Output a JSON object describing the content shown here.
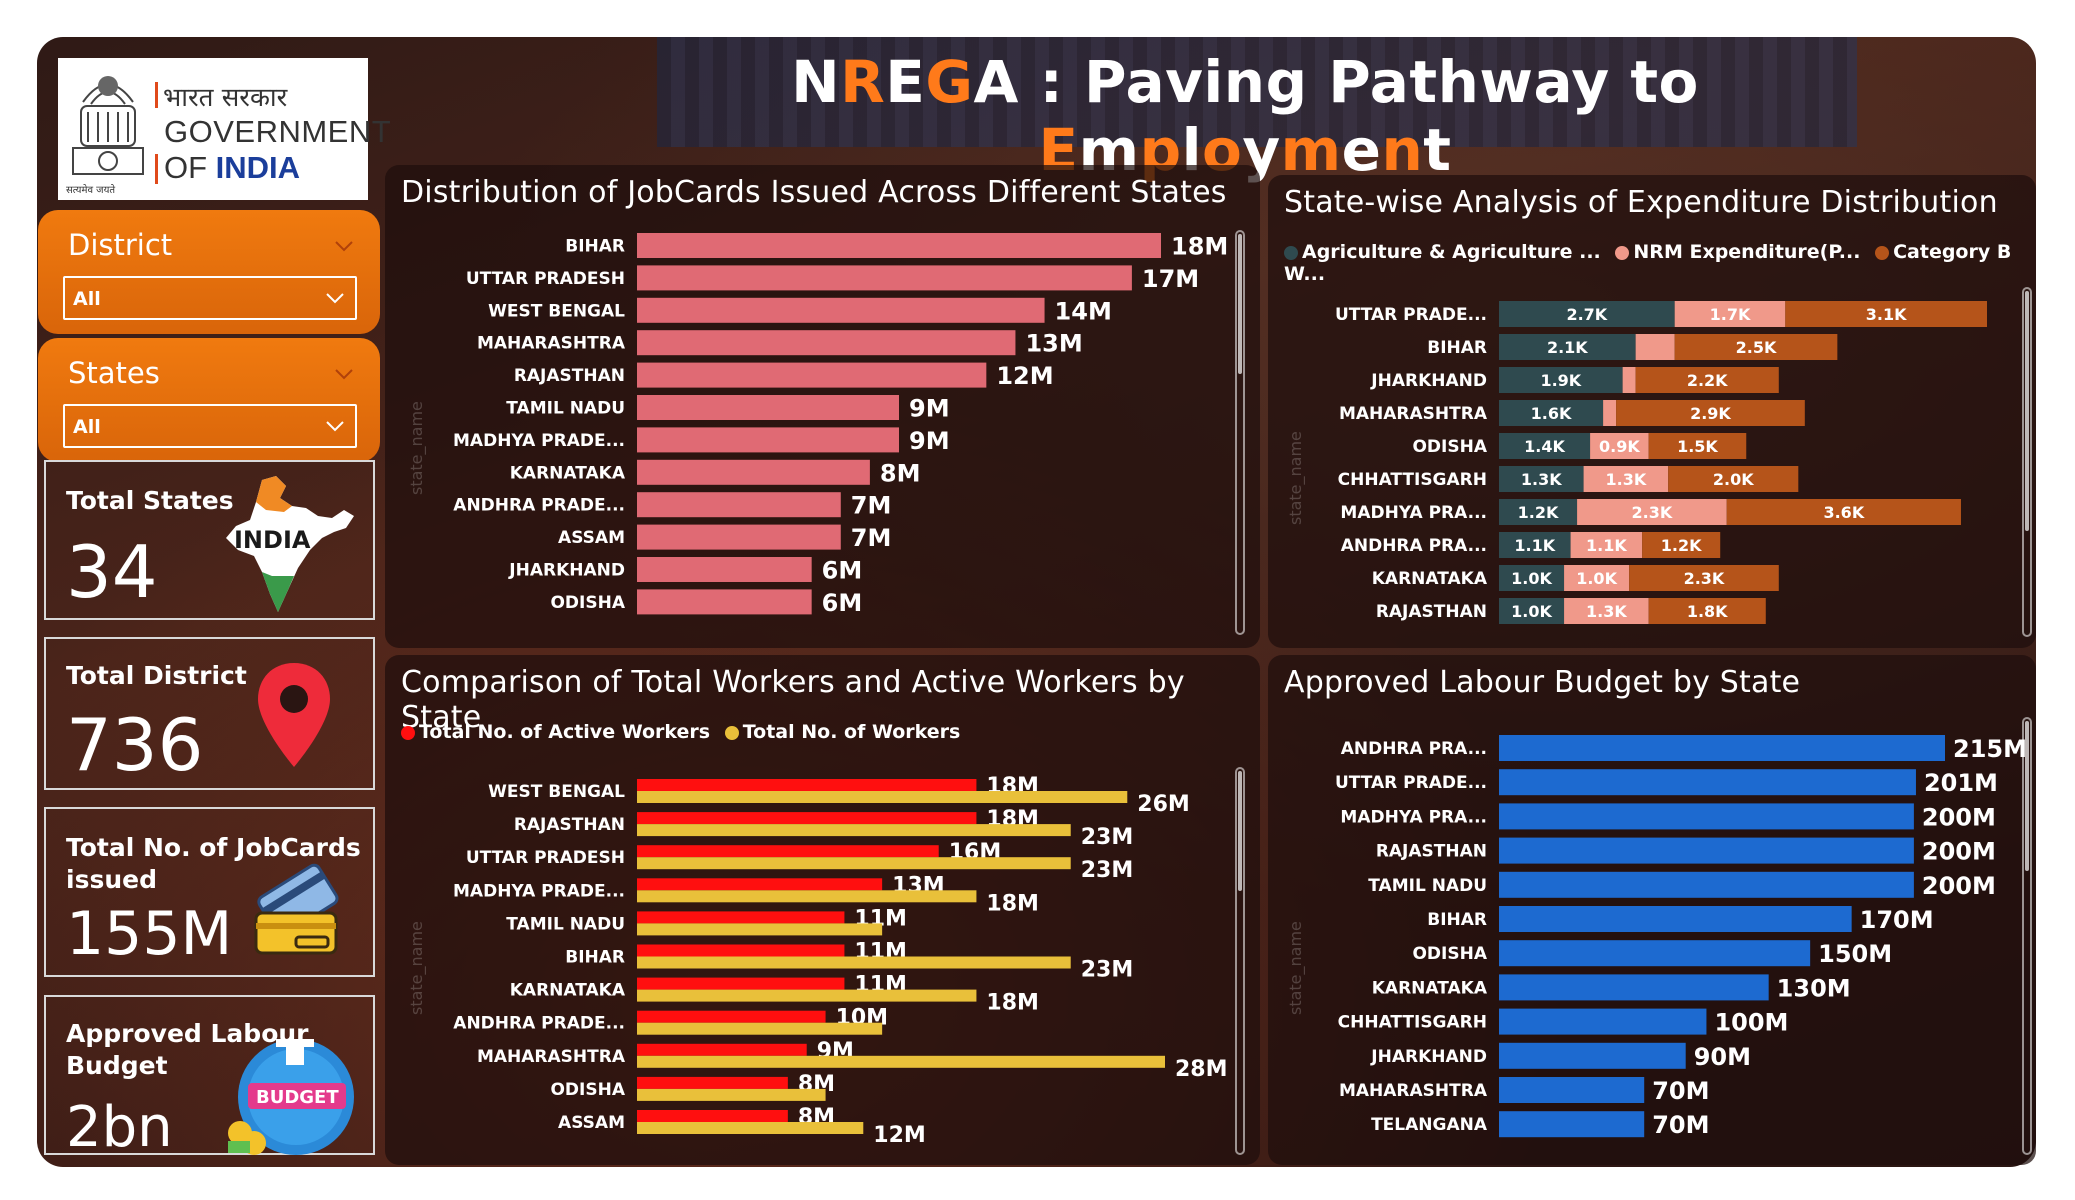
{
  "header": {
    "title_parts": [
      {
        "text": "N",
        "accent": false
      },
      {
        "text": "R",
        "accent": true
      },
      {
        "text": "E",
        "accent": false
      },
      {
        "text": "G",
        "accent": true
      },
      {
        "text": "A : Paving Pathway to ",
        "accent": false
      },
      {
        "text": "E",
        "accent": true
      },
      {
        "text": "m",
        "accent": false
      },
      {
        "text": "p",
        "accent": true
      },
      {
        "text": "l",
        "accent": false
      },
      {
        "text": "o",
        "accent": true
      },
      {
        "text": "y",
        "accent": false
      },
      {
        "text": "m",
        "accent": true
      },
      {
        "text": "e",
        "accent": false
      },
      {
        "text": "n",
        "accent": true
      },
      {
        "text": "t",
        "accent": false
      }
    ]
  },
  "logo": {
    "hindi": "भारत सरकार",
    "line1": "GOVERNMENT",
    "line2_prefix": "OF ",
    "line2_accent": "INDIA",
    "motto": "सत्यमेव जयते"
  },
  "filters": {
    "district": {
      "label": "District",
      "value": "All"
    },
    "states": {
      "label": "States",
      "value": "All"
    }
  },
  "kpis": {
    "total_states": {
      "label": "Total States",
      "value": "34",
      "icon": "india-map-icon",
      "icon_text": "INDIA"
    },
    "total_district": {
      "label": "Total District",
      "value": "736",
      "icon": "location-pin-icon"
    },
    "jobcards": {
      "label_line1": "Total No. of JobCards",
      "label_line2": "issued",
      "value": "155M",
      "icon": "credit-card-icon"
    },
    "labour_budget": {
      "label_line1": "Approved Labour",
      "label_line2": "Budget",
      "value": "2bn",
      "icon": "budget-icon",
      "icon_text": "BUDGET"
    }
  },
  "colors": {
    "accent": "#ff7a1a",
    "jobcards_bar": "#e06a74",
    "active_workers": "#ff0f0f",
    "total_workers": "#e9c03a",
    "agriculture": "#2f4a4f",
    "nrm": "#f0998a",
    "category_b": "#b5541a",
    "budget_bar": "#1d6ad0"
  },
  "chart_data": [
    {
      "id": "jobcards",
      "type": "bar",
      "orientation": "horizontal",
      "title": "Distribution of JobCards Issued Across Different States",
      "ylabel": "state_name",
      "categories": [
        "BIHAR",
        "UTTAR PRADESH",
        "WEST BENGAL",
        "MAHARASHTRA",
        "RAJASTHAN",
        "TAMIL NADU",
        "MADHYA PRADE...",
        "KARNATAKA",
        "ANDHRA PRADE...",
        "ASSAM",
        "JHARKHAND",
        "ODISHA"
      ],
      "values": [
        18,
        17,
        14,
        13,
        12,
        9,
        9,
        8,
        7,
        7,
        6,
        6
      ],
      "value_labels": [
        "18M",
        "17M",
        "14M",
        "13M",
        "12M",
        "9M",
        "9M",
        "8M",
        "7M",
        "7M",
        "6M",
        "6M"
      ],
      "unit": "M",
      "xlim": [
        0,
        18
      ]
    },
    {
      "id": "expenditure",
      "type": "bar",
      "orientation": "horizontal",
      "stacked": true,
      "title": "State-wise Analysis of Expenditure Distribution",
      "ylabel": "state_name",
      "categories": [
        "UTTAR PRADE...",
        "BIHAR",
        "JHARKHAND",
        "MAHARASHTRA",
        "ODISHA",
        "CHHATTISGARH",
        "MADHYA PRA...",
        "ANDHRA PRA...",
        "KARNATAKA",
        "RAJASTHAN"
      ],
      "series": [
        {
          "name": "Agriculture & Agriculture ...",
          "values": [
            2.7,
            2.1,
            1.9,
            1.6,
            1.4,
            1.3,
            1.2,
            1.1,
            1.0,
            1.0
          ],
          "labels": [
            "2.7K",
            "2.1K",
            "1.9K",
            "1.6K",
            "1.4K",
            "1.3K",
            "1.2K",
            "1.1K",
            "1.0K",
            "1.0K"
          ]
        },
        {
          "name": "NRM Expenditure(P...",
          "values": [
            1.7,
            0.6,
            0.2,
            0.2,
            0.9,
            1.3,
            2.3,
            1.1,
            1.0,
            1.3
          ],
          "labels": [
            "1.7K",
            "",
            "",
            "",
            "0.9K",
            "1.3K",
            "2.3K",
            "1.1K",
            "1.0K",
            "1.3K"
          ]
        },
        {
          "name": "Category B W...",
          "values": [
            3.1,
            2.5,
            2.2,
            2.9,
            1.5,
            2.0,
            3.6,
            1.2,
            2.3,
            1.8
          ],
          "labels": [
            "3.1K",
            "2.5K",
            "2.2K",
            "2.9K",
            "1.5K",
            "2.0K",
            "3.6K",
            "1.2K",
            "2.3K",
            "1.8K"
          ]
        }
      ],
      "xlim": [
        0,
        7.5
      ],
      "legend_position": "top-left"
    },
    {
      "id": "workers",
      "type": "bar",
      "orientation": "horizontal",
      "grouped": true,
      "title": "Comparison of Total Workers and Active Workers by State",
      "ylabel": "state_name",
      "categories": [
        "WEST BENGAL",
        "RAJASTHAN",
        "UTTAR PRADESH",
        "MADHYA PRADE...",
        "TAMIL NADU",
        "BIHAR",
        "KARNATAKA",
        "ANDHRA PRADE...",
        "MAHARASHTRA",
        "ODISHA",
        "ASSAM"
      ],
      "series": [
        {
          "name": "Total No. of Active Workers",
          "values": [
            18,
            18,
            16,
            13,
            11,
            11,
            11,
            10,
            9,
            8,
            8
          ],
          "labels": [
            "18M",
            "18M",
            "16M",
            "13M",
            "11M",
            "11M",
            "11M",
            "10M",
            "9M",
            "8M",
            "8M"
          ]
        },
        {
          "name": "Total No. of Workers",
          "values": [
            26,
            23,
            23,
            18,
            13,
            23,
            18,
            13,
            28,
            10,
            12
          ],
          "labels": [
            "26M",
            "23M",
            "23M",
            "18M",
            "",
            "23M",
            "18M",
            "",
            "28M",
            "",
            "12M"
          ]
        }
      ],
      "xlim": [
        0,
        28
      ],
      "legend_position": "top-left"
    },
    {
      "id": "budget",
      "type": "bar",
      "orientation": "horizontal",
      "title": "Approved Labour Budget by State",
      "ylabel": "state_name",
      "categories": [
        "ANDHRA PRA...",
        "UTTAR PRADE...",
        "MADHYA PRA...",
        "RAJASTHAN",
        "TAMIL NADU",
        "BIHAR",
        "ODISHA",
        "KARNATAKA",
        "CHHATTISGARH",
        "JHARKHAND",
        "MAHARASHTRA",
        "TELANGANA"
      ],
      "values": [
        215,
        201,
        200,
        200,
        200,
        170,
        150,
        130,
        100,
        90,
        70,
        70
      ],
      "value_labels": [
        "215M",
        "201M",
        "200M",
        "200M",
        "200M",
        "170M",
        "150M",
        "130M",
        "100M",
        "90M",
        "70M",
        "70M"
      ],
      "unit": "M",
      "xlim": [
        0,
        215
      ]
    }
  ]
}
